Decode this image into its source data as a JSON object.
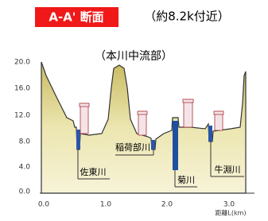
{
  "header": {
    "title": "A-A' 断面",
    "subtitle": "（約8.2k付近）"
  },
  "section_label": "（本川中流部）",
  "y_axis": {
    "ticks": [
      "20.0",
      "16.0",
      "12.0",
      "8.0",
      "4.0",
      "0.0"
    ]
  },
  "x_axis": {
    "ticks": [
      "0.0",
      "1.0",
      "2.0",
      "3.0"
    ],
    "label": "距離L(km)"
  },
  "rivers": [
    {
      "label": "佐東川"
    },
    {
      "label": "稲荷部川"
    },
    {
      "label": "菊川"
    },
    {
      "label": "牛淵川"
    }
  ]
}
